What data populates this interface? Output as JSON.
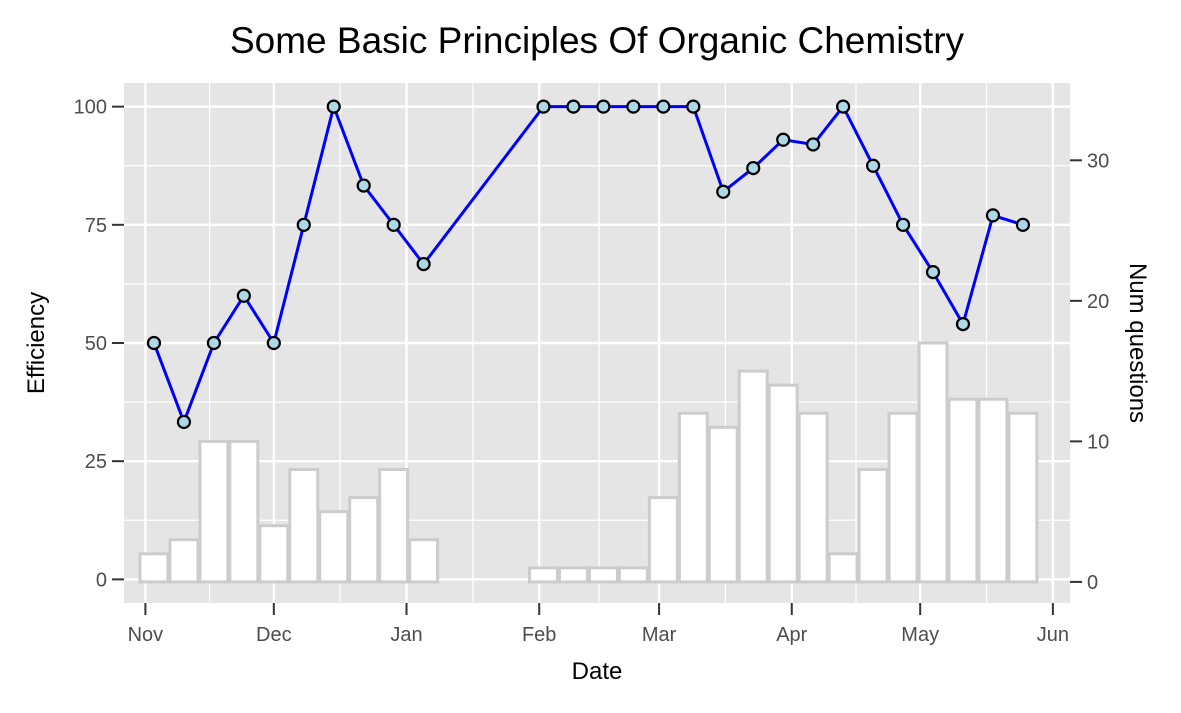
{
  "chart_data": {
    "type": "line",
    "title": "Some Basic Principles Of Organic Chemistry",
    "xlabel": "Date",
    "ylabel": "Efficiency",
    "ylabel_right": "Num questions",
    "x_ticks": [
      "Nov",
      "Dec",
      "Jan",
      "Feb",
      "Mar",
      "Apr",
      "May",
      "Jun"
    ],
    "y_ticks": [
      "0",
      "25",
      "50",
      "75",
      "100"
    ],
    "y_right_ticks": [
      "0",
      "10",
      "20",
      "30"
    ],
    "ylim": [
      -5,
      105
    ],
    "y_right_lim": [
      -1.5,
      35.5
    ],
    "grid": true,
    "colors": {
      "panel": "#e5e5e5",
      "grid_major": "#ffffff",
      "line": "#0000ff",
      "point_fill": "#add8e6",
      "point_stroke": "#000000",
      "bar_fill": "#ffffff",
      "bar_stroke": "#cccccc"
    },
    "series": [
      {
        "kind": "line",
        "x": [
          "2018-11-03",
          "2018-11-10",
          "2018-11-17",
          "2018-11-24",
          "2018-12-01",
          "2018-12-08",
          "2018-12-15",
          "2018-12-22",
          "2018-12-29",
          "2019-01-05",
          "2019-02-02",
          "2019-02-09",
          "2019-02-16",
          "2019-02-23",
          "2019-03-02",
          "2019-03-09",
          "2019-03-16",
          "2019-03-23",
          "2019-03-30",
          "2019-04-06",
          "2019-04-13",
          "2019-04-20",
          "2019-04-27",
          "2019-05-04",
          "2019-05-11",
          "2019-05-18",
          "2019-05-25"
        ],
        "values": [
          50,
          33.3,
          50,
          60,
          50,
          75,
          100,
          83.3,
          75,
          66.7,
          100,
          100,
          100,
          100,
          100,
          100,
          82,
          87,
          93,
          92,
          100,
          87.5,
          75,
          65,
          54,
          77,
          75
        ]
      },
      {
        "kind": "bar",
        "axis": "right",
        "x": [
          "2018-11-03",
          "2018-11-10",
          "2018-11-17",
          "2018-11-24",
          "2018-12-01",
          "2018-12-08",
          "2018-12-15",
          "2018-12-22",
          "2018-12-29",
          "2019-01-05",
          "2019-02-02",
          "2019-02-09",
          "2019-02-16",
          "2019-02-23",
          "2019-03-02",
          "2019-03-09",
          "2019-03-16",
          "2019-03-23",
          "2019-03-30",
          "2019-04-06",
          "2019-04-13",
          "2019-04-20",
          "2019-04-27",
          "2019-05-04",
          "2019-05-11",
          "2019-05-18",
          "2019-05-25"
        ],
        "values": [
          2,
          3,
          10,
          10,
          4,
          8,
          5,
          6,
          8,
          3,
          1,
          1,
          1,
          1,
          6,
          12,
          11,
          15,
          14,
          12,
          2,
          8,
          12,
          17,
          13,
          13,
          12
        ]
      }
    ]
  }
}
